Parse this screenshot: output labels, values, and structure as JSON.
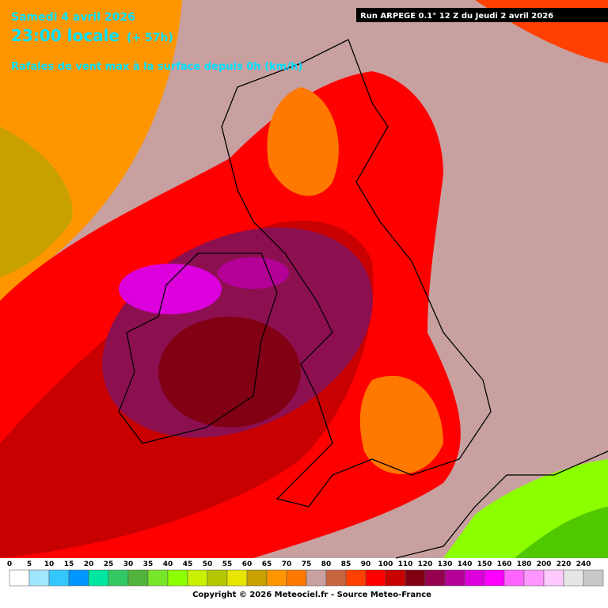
{
  "header": {
    "date": "Samedi 4 avril 2026",
    "time": "23:00 locale",
    "lead": "(+ 57h)",
    "parameter": "Rafales de vent max à la surface depuis 0h (km/h)"
  },
  "run": "Run ARPEGE 0.1° 12 Z du Jeudi 2 avril 2026",
  "legend": {
    "items": [
      {
        "value": 0,
        "color": "#ffffff"
      },
      {
        "value": 5,
        "color": "#a0e6ff"
      },
      {
        "value": 10,
        "color": "#32c8ff"
      },
      {
        "value": 15,
        "color": "#0096ff"
      },
      {
        "value": 20,
        "color": "#00e6a0"
      },
      {
        "value": 25,
        "color": "#32c864"
      },
      {
        "value": 30,
        "color": "#50b43c"
      },
      {
        "value": 35,
        "color": "#78e628"
      },
      {
        "value": 40,
        "color": "#8cff00"
      },
      {
        "value": 45,
        "color": "#c8f000"
      },
      {
        "value": 50,
        "color": "#b4c800"
      },
      {
        "value": 55,
        "color": "#e6e600"
      },
      {
        "value": 60,
        "color": "#c8a000"
      },
      {
        "value": 65,
        "color": "#ff9600"
      },
      {
        "value": 70,
        "color": "#ff7800"
      },
      {
        "value": 75,
        "color": "#c8a0a0"
      },
      {
        "value": 80,
        "color": "#c86440"
      },
      {
        "value": 85,
        "color": "#ff4000"
      },
      {
        "value": 90,
        "color": "#ff0000"
      },
      {
        "value": 100,
        "color": "#c80000"
      },
      {
        "value": 110,
        "color": "#820014"
      },
      {
        "value": 120,
        "color": "#960050"
      },
      {
        "value": 130,
        "color": "#b40096"
      },
      {
        "value": 140,
        "color": "#dc00dc"
      },
      {
        "value": 150,
        "color": "#ff00ff"
      },
      {
        "value": 160,
        "color": "#ff64ff"
      },
      {
        "value": 180,
        "color": "#ff96ff"
      },
      {
        "value": 200,
        "color": "#ffc8ff"
      },
      {
        "value": 220,
        "color": "#e6e6e6"
      },
      {
        "value": 240,
        "color": "#c8c8c8"
      }
    ]
  },
  "copyright": "Copyright © 2026 Meteociel.fr - Source Meteo-France"
}
